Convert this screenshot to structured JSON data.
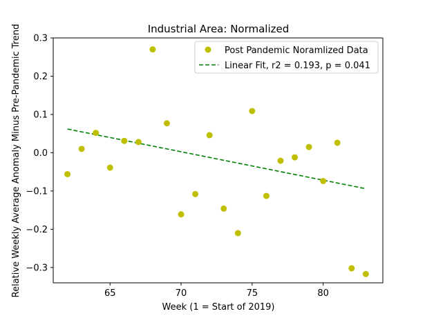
{
  "chart_data": {
    "type": "scatter",
    "title": "Industrial Area: Normalized",
    "xlabel": "Week (1 = Start of 2019)",
    "ylabel": "Relative Weekly Average Anomaly Minus Pre-Pandemic Trend",
    "xlim": [
      61,
      84.2
    ],
    "ylim": [
      -0.34,
      0.3
    ],
    "xticks": [
      65,
      70,
      75,
      80
    ],
    "yticks": [
      -0.3,
      -0.2,
      -0.1,
      0.0,
      0.1,
      0.2,
      0.3
    ],
    "xtick_labels": [
      "65",
      "70",
      "75",
      "80"
    ],
    "ytick_labels": [
      "−0.3",
      "−0.2",
      "−0.1",
      "0.0",
      "0.1",
      "0.2",
      "0.3"
    ],
    "grid": false,
    "legend_position": "top-right",
    "series": [
      {
        "name": "Post Pandemic Noramlized Data",
        "kind": "scatter",
        "color": "#bfbf00",
        "points": [
          [
            62,
            -0.056
          ],
          [
            63,
            0.01
          ],
          [
            64,
            0.052
          ],
          [
            65,
            -0.039
          ],
          [
            66,
            0.031
          ],
          [
            67,
            0.028
          ],
          [
            68,
            0.27
          ],
          [
            69,
            0.077
          ],
          [
            70,
            -0.161
          ],
          [
            71,
            -0.108
          ],
          [
            72,
            0.046
          ],
          [
            73,
            -0.146
          ],
          [
            74,
            -0.21
          ],
          [
            75,
            0.109
          ],
          [
            76,
            -0.113
          ],
          [
            77,
            -0.021
          ],
          [
            78,
            -0.012
          ],
          [
            79,
            0.015
          ],
          [
            80,
            -0.074
          ],
          [
            81,
            0.026
          ],
          [
            82,
            -0.302
          ],
          [
            83,
            -0.317
          ]
        ]
      },
      {
        "name": "Linear Fit, r2 = 0.193, p = 0.041",
        "kind": "line",
        "style": "dashed",
        "color": "#008000",
        "points": [
          [
            62,
            0.062
          ],
          [
            83,
            -0.094
          ]
        ]
      }
    ]
  }
}
